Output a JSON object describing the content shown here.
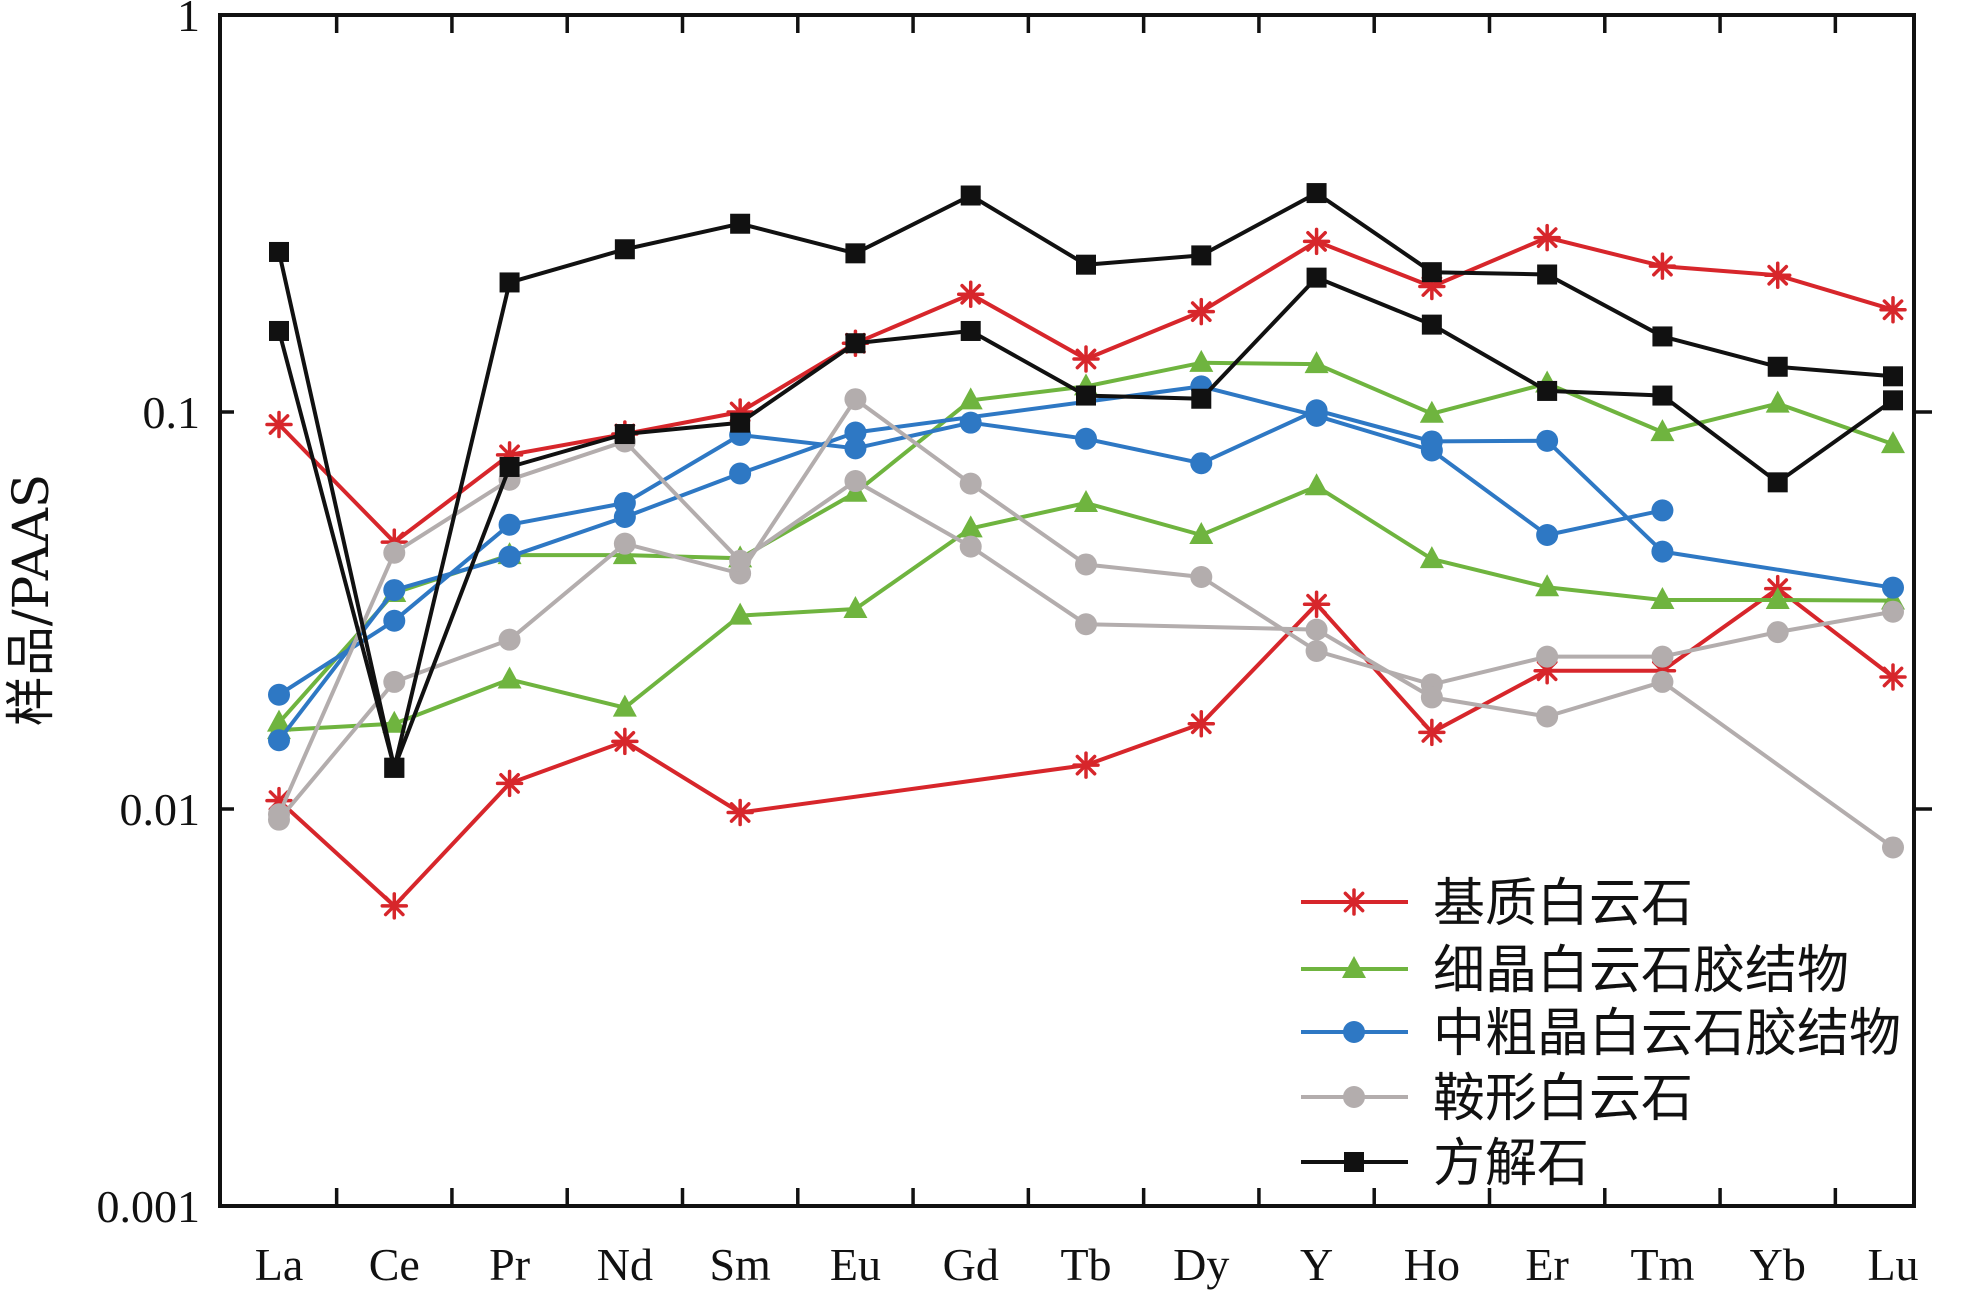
{
  "chart_data": {
    "type": "line",
    "ylabel": "样品/PAAS",
    "categories": [
      "La",
      "Ce",
      "Pr",
      "Nd",
      "Sm",
      "Eu",
      "Gd",
      "Tb",
      "Dy",
      "Y",
      "Ho",
      "Er",
      "Tm",
      "Yb",
      "Lu"
    ],
    "y_scale": "log",
    "ylim": [
      0.001,
      1
    ],
    "y_ticks": [
      1,
      0.1,
      0.01,
      0.001
    ],
    "y_tick_labels": [
      "1",
      "0.1",
      "0.01",
      "0.001"
    ],
    "grid": false,
    "legend_position": "bottom-right",
    "series": [
      {
        "name": "基质白云石",
        "color": "#d7262b",
        "marker": "asterisk",
        "samples": [
          [
            0.093,
            0.047,
            0.078,
            0.088,
            0.1,
            0.149,
            0.198,
            0.136,
            0.179,
            0.269,
            0.207,
            0.275,
            0.233,
            0.221,
            0.181
          ],
          [
            0.0105,
            0.0057,
            0.0116,
            0.0148,
            0.0098,
            null,
            null,
            0.0129,
            0.0164,
            0.0328,
            0.0156,
            0.0223,
            0.0223,
            0.0359,
            0.0215
          ]
        ]
      },
      {
        "name": "细晶白云石胶结物",
        "color": "#6fb43f",
        "marker": "triangle",
        "samples": [
          [
            0.0165,
            0.035,
            0.0436,
            0.0436,
            0.0428,
            0.0626,
            0.107,
            0.116,
            0.133,
            0.132,
            0.099,
            0.118,
            0.089,
            0.105,
            0.083
          ],
          [
            0.0158,
            0.0164,
            0.0212,
            0.018,
            0.0307,
            0.0319,
            0.0509,
            0.059,
            0.049,
            0.065,
            0.0426,
            0.0362,
            0.0336,
            0.0336,
            0.0335
          ]
        ]
      },
      {
        "name": "中粗晶白云石胶结物",
        "color": "#2e78c4",
        "marker": "circle",
        "samples": [
          [
            0.0194,
            0.0298,
            0.052,
            0.059,
            0.0875,
            0.081,
            0.094,
            0.0856,
            0.0743,
            0.101,
            0.0843,
            0.0846,
            0.0445,
            null,
            0.0361
          ],
          [
            0.0149,
            0.0356,
            0.0432,
            0.0544,
            0.07,
            0.0888,
            null,
            null,
            0.116,
            0.0978,
            0.08,
            0.049,
            0.0565,
            null,
            null
          ]
        ]
      },
      {
        "name": "鞍形白云石",
        "color": "#b3adad",
        "marker": "circle",
        "samples": [
          [
            0.0094,
            0.0209,
            0.0267,
            0.0466,
            0.0392,
            0.1077,
            0.066,
            0.0413,
            0.0384,
            0.025,
            0.0206,
            0.0242,
            0.0242,
            0.0279,
            0.0314
          ],
          [
            0.0097,
            0.0442,
            0.0675,
            0.0843,
            0.0422,
            0.067,
            0.0458,
            0.0292,
            null,
            0.0283,
            0.0191,
            0.0171,
            0.0209,
            null,
            0.008
          ]
        ]
      },
      {
        "name": "方解石",
        "color": "#111111",
        "marker": "square",
        "samples": [
          [
            0.253,
            0.0127,
            0.212,
            0.257,
            0.298,
            0.251,
            0.351,
            0.235,
            0.248,
            0.356,
            0.225,
            0.222,
            0.155,
            0.13,
            0.123
          ],
          [
            0.16,
            0.0127,
            0.0727,
            0.088,
            0.094,
            0.149,
            0.16,
            0.11,
            0.108,
            0.218,
            0.166,
            0.113,
            0.11,
            0.0665,
            0.107
          ]
        ]
      }
    ]
  }
}
